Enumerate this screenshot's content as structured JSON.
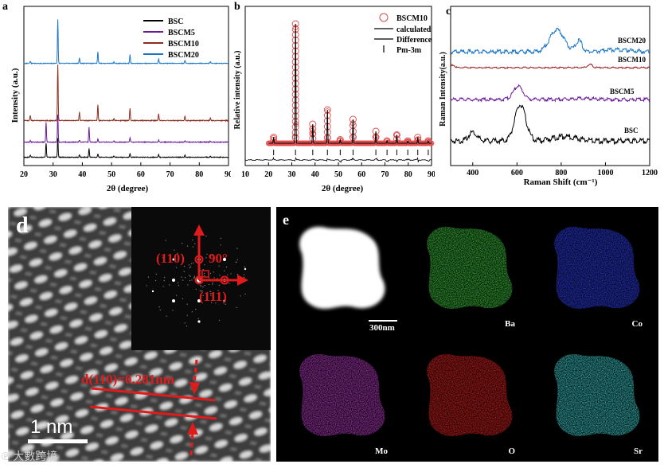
{
  "panels": {
    "a": {
      "letter": "a",
      "ylabel": "Intensity (a.u.)",
      "xlabel": "2θ (degree)"
    },
    "b": {
      "letter": "b",
      "ylabel": "Relative intensity (a.u.)",
      "xlabel": "2θ (degree)"
    },
    "c": {
      "letter": "c",
      "ylabel": "Raman Intensity(a.u.)",
      "xlabel": "Raman Shift (cm⁻¹)"
    },
    "d": {
      "letter": "d",
      "plane_110": "(110)",
      "plane_111": "(111)",
      "angle": "90°",
      "d_spacing": "d(110)=0.281nm",
      "scalebar": "1 nm"
    },
    "e": {
      "letter": "e",
      "scalebar": "300nm",
      "maps": [
        {
          "label": "",
          "color": "#ffffff"
        },
        {
          "label": "Ba",
          "color": "#3fc53f"
        },
        {
          "label": "Co",
          "color": "#2f3ff0"
        },
        {
          "label": "Mo",
          "color": "#b53cc2"
        },
        {
          "label": "O",
          "color": "#e02222"
        },
        {
          "label": "Sr",
          "color": "#3fd0cf"
        }
      ]
    }
  },
  "watermark": "大數跨境",
  "chart_data": [
    {
      "id": "a",
      "type": "line",
      "title": "",
      "xlabel": "2θ (degree)",
      "ylabel": "Intensity (a.u.)",
      "xlim": [
        20,
        90
      ],
      "xticks": [
        "20",
        "30",
        "40",
        "50",
        "60",
        "70",
        "80",
        "90"
      ],
      "legend": "top-right",
      "peaks_2theta": [
        22.2,
        27.6,
        31.6,
        39.0,
        42.3,
        45.3,
        50.8,
        56.3,
        66.1,
        75.1,
        83.8
      ],
      "series": [
        {
          "name": "BSC",
          "color": "#000000",
          "intensities": [
            0.04,
            0.3,
            0.4,
            0.05,
            0.18,
            0.07,
            0.03,
            0.08,
            0.05,
            0.04,
            0.02
          ]
        },
        {
          "name": "BSCM5",
          "color": "#6a1a9a",
          "intensities": [
            0.03,
            0.4,
            0.55,
            0.04,
            0.3,
            0.06,
            0.02,
            0.09,
            0.04,
            0.03,
            0.02
          ]
        },
        {
          "name": "BSCM10",
          "color": "#8b2d1c",
          "intensities": [
            0.1,
            0.0,
            1.0,
            0.15,
            0.0,
            0.28,
            0.04,
            0.22,
            0.12,
            0.08,
            0.05
          ]
        },
        {
          "name": "BSCM20",
          "color": "#1b76c6",
          "intensities": [
            0.05,
            0.0,
            1.0,
            0.12,
            0.0,
            0.26,
            0.03,
            0.2,
            0.1,
            0.06,
            0.04
          ]
        }
      ]
    },
    {
      "id": "b",
      "type": "scatter",
      "title": "",
      "xlabel": "2θ (degree)",
      "ylabel": "Relative intensity (a.u.)",
      "xlim": [
        10,
        90
      ],
      "xticks": [
        "10",
        "20",
        "30",
        "40",
        "50",
        "60",
        "70",
        "80",
        "90"
      ],
      "legend": "top-right",
      "legend_entries": [
        "BSCM10",
        "calculated",
        "Difference",
        "Pm-3m"
      ],
      "peaks_2theta": [
        22.2,
        31.6,
        39.0,
        45.3,
        50.8,
        56.3,
        66.1,
        70.9,
        75.1,
        79.8,
        84.1,
        88.6
      ],
      "peak_intensities": [
        0.05,
        1.0,
        0.16,
        0.28,
        0.03,
        0.2,
        0.1,
        0.02,
        0.07,
        0.02,
        0.05,
        0.02
      ],
      "bragg_positions": [
        22.2,
        31.6,
        39.0,
        45.3,
        50.8,
        56.3,
        66.1,
        70.9,
        75.1,
        79.8,
        84.1,
        88.6
      ]
    },
    {
      "id": "c",
      "type": "line",
      "title": "",
      "xlabel": "Raman Shift (cm⁻¹)",
      "ylabel": "Raman Intensity(a.u.)",
      "xlim": [
        300,
        1200
      ],
      "xticks": [
        "400",
        "600",
        "800",
        "1000",
        "1200"
      ],
      "legend": "inline",
      "series": [
        {
          "name": "BSC",
          "color": "#000000",
          "bands": [
            [
              400,
              0.25
            ],
            [
              615,
              1.0
            ],
            [
              820,
              0.12
            ]
          ]
        },
        {
          "name": "BSCM5",
          "color": "#6a1a9a",
          "bands": [
            [
              605,
              0.6
            ],
            [
              900,
              0.05
            ]
          ]
        },
        {
          "name": "BSCM10",
          "color": "#9b1c1c",
          "bands": [
            [
              310,
              0.3
            ],
            [
              930,
              0.35
            ]
          ]
        },
        {
          "name": "BSCM20",
          "color": "#1b76c6",
          "bands": [
            [
              780,
              0.8
            ],
            [
              880,
              0.4
            ],
            [
              1050,
              0.08
            ]
          ]
        }
      ]
    }
  ]
}
